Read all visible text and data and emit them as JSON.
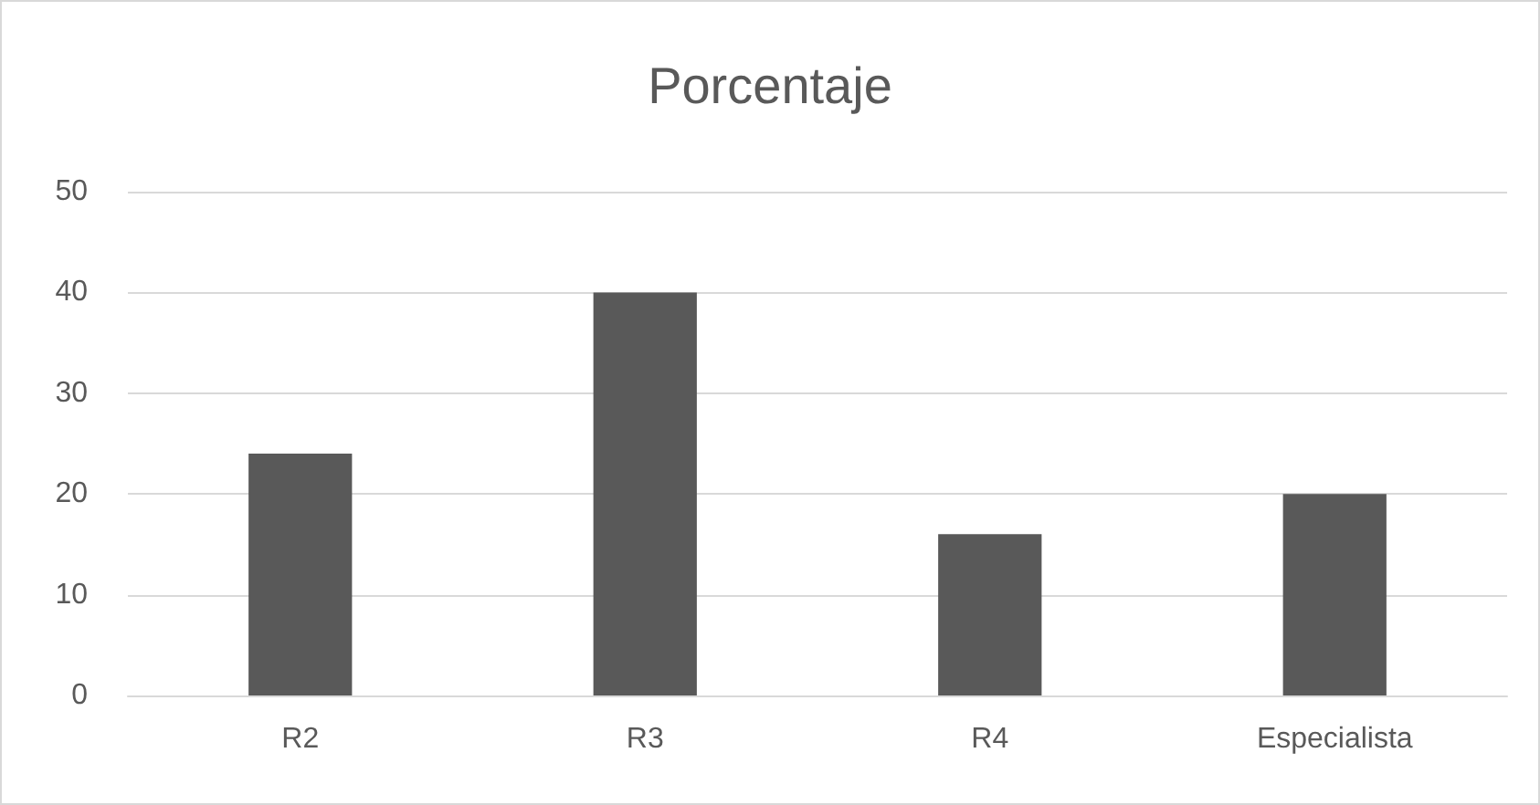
{
  "chart_data": {
    "type": "bar",
    "title": "Porcentaje",
    "categories": [
      "R2",
      "R3",
      "R4",
      "Especialista"
    ],
    "values": [
      24,
      40,
      16,
      20
    ],
    "color": "#595959",
    "ylim": [
      0,
      50
    ],
    "yticks": [
      0,
      10,
      20,
      30,
      40,
      50
    ],
    "grid": "y"
  }
}
